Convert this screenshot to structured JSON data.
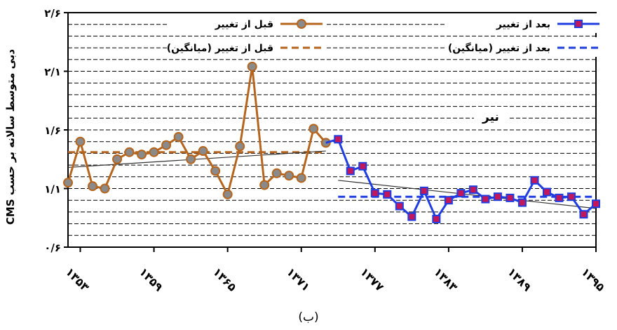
{
  "chart_data": {
    "type": "line",
    "ylabel": "CMS دبی متوسط سالانه بر حسب",
    "ylim": [
      0.6,
      2.6
    ],
    "yticks": [
      0.6,
      1.1,
      1.6,
      2.1,
      2.6
    ],
    "ytick_labels": [
      "۰/۶",
      "۱/۱",
      "۱/۶",
      "۲/۱",
      "۲/۶"
    ],
    "xlim": [
      1352,
      1395
    ],
    "xticks": [
      1353,
      1359,
      1365,
      1371,
      1377,
      1383,
      1389,
      1395
    ],
    "xtick_labels": [
      "۱۳۵۳",
      "۱۳۵۹",
      "۱۳۶۵",
      "۱۳۷۱",
      "۱۳۷۷",
      "۱۳۸۳",
      "۱۳۸۹",
      "۱۳۹۵"
    ],
    "annotation": "نیر",
    "grid": "horizontal dashed",
    "legend_position": "top",
    "series": [
      {
        "name": "قبل از تغییر",
        "color": "#b5651d",
        "marker": "circle",
        "x": [
          1352,
          1353,
          1354,
          1355,
          1356,
          1357,
          1358,
          1359,
          1360,
          1361,
          1362,
          1363,
          1364,
          1365,
          1366,
          1367,
          1368,
          1369,
          1370,
          1371,
          1372,
          1373
        ],
        "values": [
          1.15,
          1.5,
          1.12,
          1.1,
          1.35,
          1.41,
          1.39,
          1.41,
          1.47,
          1.54,
          1.35,
          1.42,
          1.25,
          1.05,
          1.46,
          2.14,
          1.13,
          1.23,
          1.21,
          1.19,
          1.61,
          1.49
        ]
      },
      {
        "name": "بعد از تغییر",
        "color": "#1f3de0",
        "marker": "square",
        "x": [
          1374,
          1375,
          1376,
          1377,
          1378,
          1379,
          1380,
          1381,
          1382,
          1383,
          1384,
          1385,
          1386,
          1387,
          1388,
          1389,
          1390,
          1391,
          1392,
          1393,
          1394,
          1395
        ],
        "values": [
          1.52,
          1.25,
          1.29,
          1.06,
          1.05,
          0.95,
          0.86,
          1.08,
          0.84,
          1.0,
          1.06,
          1.09,
          1.01,
          1.03,
          1.02,
          0.98,
          1.17,
          1.07,
          1.02,
          1.03,
          0.88,
          0.97
        ]
      },
      {
        "name": "قبل از تغییر (میانگین)",
        "color": "#b5651d",
        "style": "dashed",
        "x": [
          1352,
          1373
        ],
        "values": [
          1.41,
          1.41
        ]
      },
      {
        "name": "بعد از تغییر (میانگین)",
        "color": "#1f3de0",
        "style": "dashed",
        "x": [
          1374,
          1395
        ],
        "values": [
          1.03,
          1.03
        ]
      }
    ],
    "trendlines": [
      {
        "x": [
          1352,
          1373
        ],
        "values": [
          1.28,
          1.42
        ],
        "color": "#333333"
      },
      {
        "x": [
          1374,
          1395
        ],
        "values": [
          1.17,
          0.93
        ],
        "color": "#333333"
      }
    ]
  },
  "caption": "(ب)"
}
